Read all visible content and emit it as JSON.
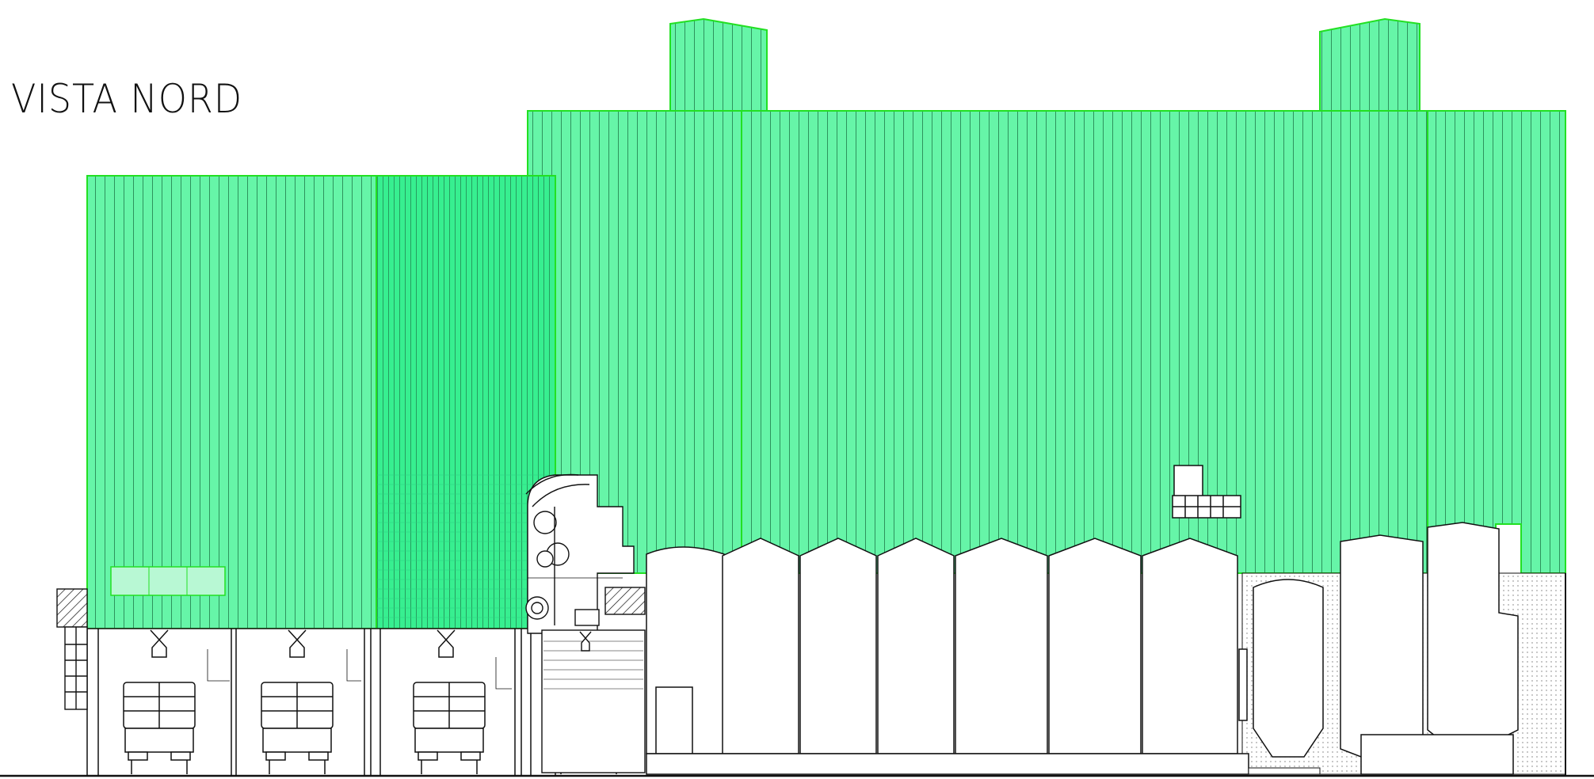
{
  "title": "VISTA NORD",
  "colors": {
    "cladding": "#66f5a8",
    "cladding_dark": "#37ef90",
    "cladding_light": "#b8f8d4",
    "outline_green": "#22e022",
    "line": "#111111",
    "background": "#ffffff"
  },
  "elements": {
    "buildings": [
      "left-block",
      "left-block-tower",
      "main-hall",
      "roof-vent-left",
      "roof-vent-right",
      "right-annex"
    ],
    "silos_count": 9,
    "trucks_count": 4
  }
}
